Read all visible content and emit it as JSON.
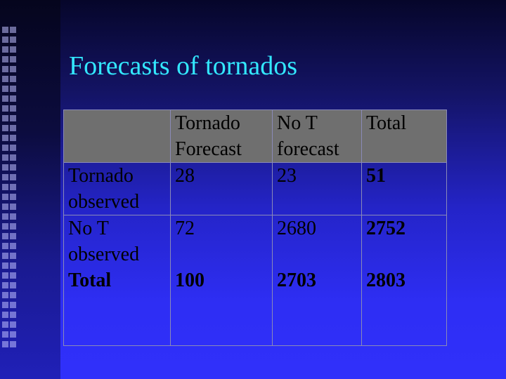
{
  "slide": {
    "title": "Forecasts of tornados"
  },
  "table": {
    "header": {
      "col1_line1": "Tornado",
      "col1_line2": "Forecast",
      "col2_line1": "No T",
      "col2_line2": "forecast",
      "col3": "Total"
    },
    "rows": [
      {
        "label_line1": "Tornado",
        "label_line2": "observed",
        "forecast": "28",
        "no_forecast": "23",
        "total": "51"
      },
      {
        "label_line1": "No T",
        "label_line2": "observed",
        "forecast": "72",
        "no_forecast": "2680",
        "total": "2752"
      },
      {
        "label_line1": "Total",
        "forecast": "100",
        "no_forecast": "2703",
        "total": "2803"
      }
    ]
  },
  "colors": {
    "title": "#33e8ff",
    "header_bg": "#6f6f6f",
    "background": "#2e2ef4"
  }
}
